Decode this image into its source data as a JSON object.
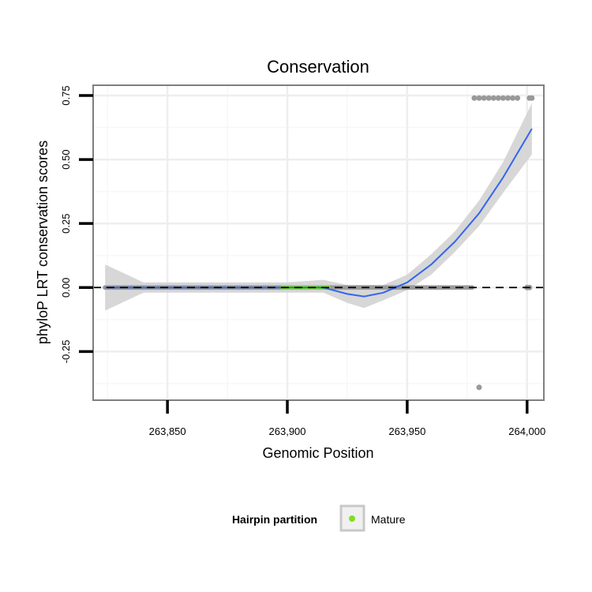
{
  "chart_data": {
    "type": "scatter",
    "title": "Conservation",
    "xlabel": "Genomic Position",
    "ylabel": "phyloP LRT conservation scores",
    "xlim": [
      263819,
      264007
    ],
    "ylim": [
      -0.44,
      0.79
    ],
    "x_ticks": [
      263850,
      263900,
      263950,
      264000
    ],
    "x_tick_labels": [
      "263,850",
      "263,900",
      "263,950",
      "264,000"
    ],
    "y_ticks": [
      -0.25,
      0,
      0.25,
      0.5,
      0.75
    ],
    "y_tick_labels": [
      "-0.25",
      "0.00",
      "0.25",
      "0.50",
      "0.75"
    ],
    "grid": true,
    "reference_line": {
      "y": 0,
      "style": "dashed",
      "color": "#000000"
    },
    "series": [
      {
        "name": "Mature",
        "color": "#7fe01f",
        "x_range": [
          263898,
          263917
        ],
        "y": 0
      },
      {
        "color": "#999999",
        "x_range": [
          263824,
          263977
        ],
        "y": 0
      },
      {
        "color": "#999999",
        "points": [
          [
            263978,
            0.74
          ],
          [
            263980,
            0.74
          ],
          [
            263982,
            0.74
          ],
          [
            263984,
            0.74
          ],
          [
            263986,
            0.74
          ],
          [
            263988,
            0.74
          ],
          [
            263990,
            0.74
          ],
          [
            263992,
            0.74
          ],
          [
            263994,
            0.74
          ],
          [
            263996,
            0.74
          ],
          [
            264001,
            0.74
          ],
          [
            264002,
            0.74
          ],
          [
            264000,
            0
          ],
          [
            264001,
            0
          ],
          [
            263980,
            -0.39
          ]
        ]
      }
    ],
    "smooth": {
      "color": "#3366ee",
      "band_color": "#d3d3d3",
      "x": [
        263824,
        263840,
        263860,
        263880,
        263900,
        263915,
        263925,
        263932,
        263940,
        263950,
        263960,
        263970,
        263980,
        263990,
        264002
      ],
      "y": [
        0,
        0,
        0,
        0,
        0,
        0,
        -0.025,
        -0.035,
        -0.02,
        0.02,
        0.09,
        0.18,
        0.29,
        0.43,
        0.62
      ],
      "lower": [
        -0.09,
        -0.02,
        -0.02,
        -0.02,
        -0.02,
        -0.02,
        -0.06,
        -0.08,
        -0.05,
        -0.01,
        0.05,
        0.14,
        0.24,
        0.37,
        0.52
      ],
      "upper": [
        0.09,
        0.02,
        0.02,
        0.02,
        0.02,
        0.03,
        0.01,
        0.01,
        0.01,
        0.05,
        0.13,
        0.22,
        0.34,
        0.49,
        0.72
      ]
    },
    "legend": {
      "title": "Hairpin partition",
      "position": "bottom",
      "entries": [
        {
          "label": "Mature",
          "color": "#7fe01f"
        }
      ]
    }
  }
}
